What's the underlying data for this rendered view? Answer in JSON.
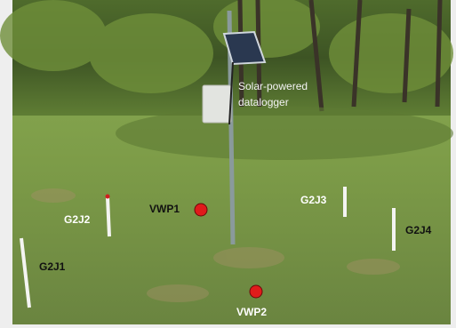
{
  "annotations": {
    "datalogger": [
      "Solar-powered",
      "datalogger"
    ],
    "vwp1": "VWP1",
    "vwp2": "VWP2",
    "g2j1": "G2J1",
    "g2j2": "G2J2",
    "g2j3": "G2J3",
    "g2j4": "G2J4"
  }
}
